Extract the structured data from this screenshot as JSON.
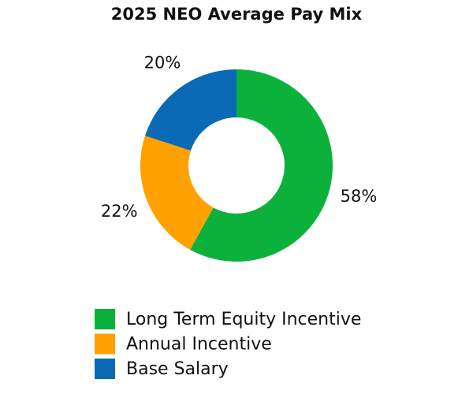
{
  "chart_data": {
    "type": "donut",
    "title": "2025 NEO Average Pay Mix",
    "categories": [
      "Long Term Equity Incentive",
      "Annual Incentive",
      "Base Salary"
    ],
    "values": [
      58,
      22,
      20
    ],
    "value_labels": [
      "58%",
      "22%",
      "20%"
    ],
    "colors": [
      "#0cb13b",
      "#ffa100",
      "#0a6ab6"
    ]
  }
}
